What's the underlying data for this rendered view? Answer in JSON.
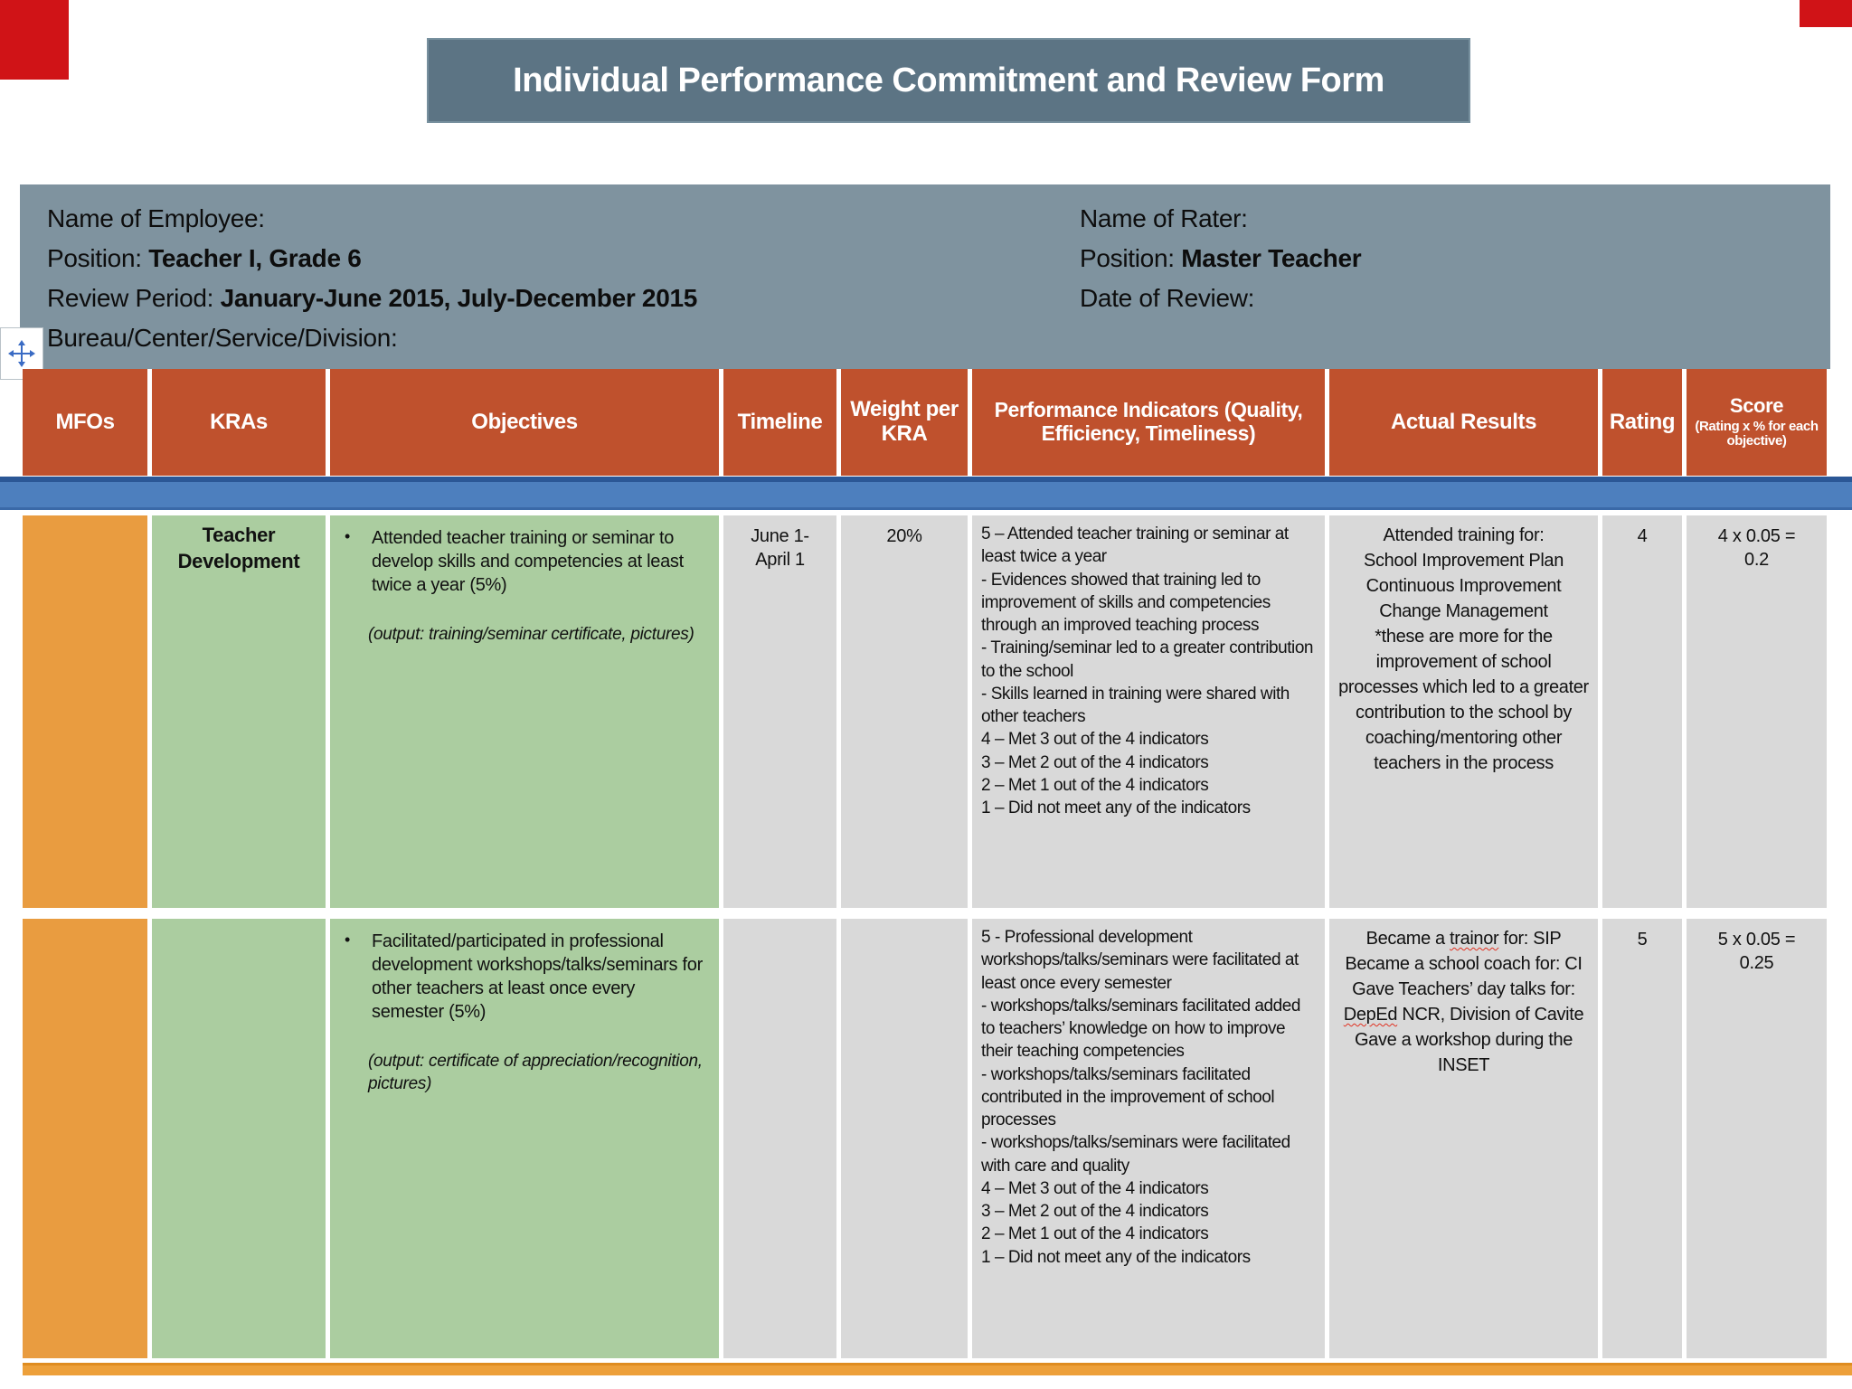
{
  "slide": {
    "title": "Individual Performance Commitment and Review Form"
  },
  "info": {
    "employee": {
      "name_label": "Name of Employee:",
      "position_label": "Position: ",
      "position_value": "Teacher I, Grade 6",
      "review_label": "Review Period: ",
      "review_value": "January-June 2015, July-December 2015",
      "bureau_label": "Bureau/Center/Service/Division:"
    },
    "rater": {
      "name_label": "Name of Rater:",
      "position_label": "Position: ",
      "position_value": "Master Teacher",
      "date_label": "Date of Review:"
    }
  },
  "table": {
    "headers": [
      "MFOs",
      "KRAs",
      "Objectives",
      "Timeline",
      "Weight per KRA",
      "Performance Indicators (Quality, Efficiency, Timeliness)",
      "Actual Results",
      "Rating",
      "Score"
    ],
    "score_sub": "(Rating x % for each objective)",
    "rows": [
      {
        "kra": "Teacher Development",
        "bullet": "•",
        "objective": "Attended teacher training or seminar to develop skills and competencies at least twice a year (5%)",
        "objective_output": "(output: training/seminar certificate, pictures)",
        "timeline": "June 1-\nApril 1",
        "weight": "20%",
        "indicators": "5 – Attended teacher training or seminar at least twice a year\n- Evidences showed that training led to improvement of skills and competencies through an improved teaching process\n- Training/seminar led to a greater contribution to the school\n- Skills learned in training were shared with other teachers\n4 – Met 3 out of the 4 indicators\n3 – Met 2 out of the 4 indicators\n2 – Met 1 out of the 4 indicators\n1 – Did not meet any of the indicators",
        "actual_results": "Attended training for:\nSchool Improvement Plan\nContinuous Improvement\nChange Management\n*these are more for the improvement of school processes which led to a greater contribution to the school by coaching/mentoring other teachers in the process",
        "rating": "4",
        "score": "4 x 0.05 =\n0.2"
      },
      {
        "kra": "",
        "bullet": "•",
        "objective": "Facilitated/participated in professional development workshops/talks/seminars for other teachers at least once every semester (5%)",
        "objective_output": "(output: certificate of appreciation/recognition, pictures)",
        "timeline": "",
        "weight": "",
        "indicators": "5 - Professional development workshops/talks/seminars were facilitated at least once every semester\n- workshops/talks/seminars facilitated added to teachers’ knowledge on how to improve their teaching competencies\n- workshops/talks/seminars facilitated contributed in the improvement of school processes\n- workshops/talks/seminars were facilitated with care and quality\n4 – Met 3 out of the 4 indicators\n3 – Met 2 out of the 4 indicators\n2 – Met 1 out of the 4 indicators\n1 – Did not meet any of the indicators",
        "actual_results": "Became a trainor for: SIP\nBecame a school coach for: CI\nGave Teachers’ day talks for: DepEd NCR, Division of Cavite\nGave a workshop during the INSET",
        "rating": "5",
        "score": "5 x 0.05 =\n0.25"
      }
    ]
  },
  "misspelled": [
    "trainor",
    "DepEd"
  ],
  "icons": {
    "move_handle": "four-arrow-move"
  },
  "colors": {
    "title_bg": "#5c7484",
    "panel_bg": "#7f939f",
    "header_bg": "#bf512d",
    "mfo_cell": "#e99c40",
    "kra_cell": "#abcda0",
    "gray_cell": "#d9d9d9",
    "band_blue": "#4d7fbe",
    "bottom_bar": "#eda03a",
    "corner_red": "#d01317"
  }
}
